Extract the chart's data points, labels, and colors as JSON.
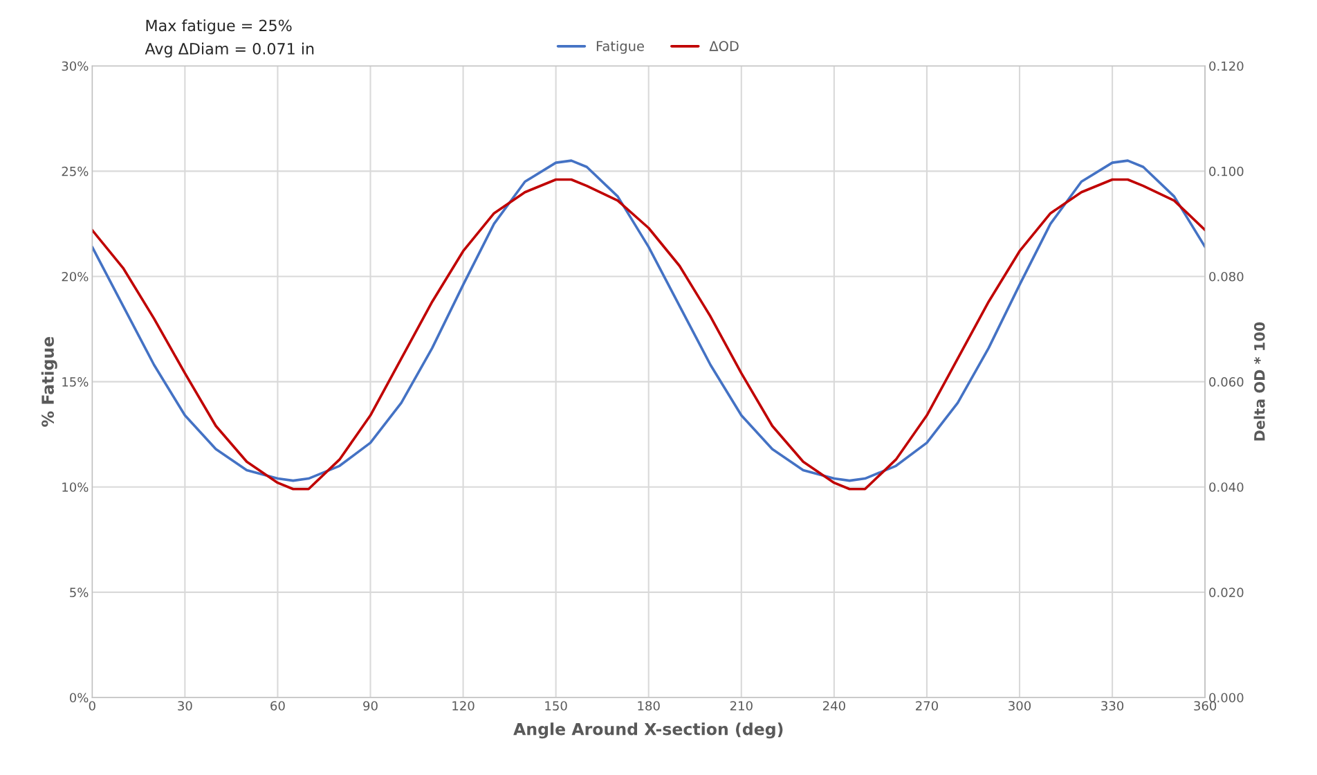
{
  "chart_data": {
    "type": "line",
    "xlabel": "Angle Around X-section (deg)",
    "ylabel": "% Fatigue",
    "y2label": "Delta OD * 100",
    "annotations": [
      "Max fatigue = 25%",
      "Avg ΔDiam = 0.071 in"
    ],
    "xlim": [
      0,
      360
    ],
    "xticks": [
      0,
      30,
      60,
      90,
      120,
      150,
      180,
      210,
      240,
      270,
      300,
      330,
      360
    ],
    "ylim": [
      0,
      30
    ],
    "yticks": [
      {
        "value": 0,
        "label": "0%"
      },
      {
        "value": 5,
        "label": "5%"
      },
      {
        "value": 10,
        "label": "10%"
      },
      {
        "value": 15,
        "label": "15%"
      },
      {
        "value": 20,
        "label": "20%"
      },
      {
        "value": 25,
        "label": "25%"
      },
      {
        "value": 30,
        "label": "30%"
      }
    ],
    "y2lim": [
      0,
      0.12
    ],
    "y2ticks": [
      {
        "value": 0,
        "label": "0.000"
      },
      {
        "value": 0.02,
        "label": "0.020"
      },
      {
        "value": 0.04,
        "label": "0.040"
      },
      {
        "value": 0.06,
        "label": "0.060"
      },
      {
        "value": 0.08,
        "label": "0.080"
      },
      {
        "value": 0.1,
        "label": "0.100"
      },
      {
        "value": 0.12,
        "label": "0.120"
      }
    ],
    "x": [
      0,
      10,
      20,
      30,
      40,
      50,
      60,
      65,
      70,
      80,
      90,
      100,
      110,
      120,
      130,
      140,
      150,
      155,
      160,
      170,
      180,
      190,
      200,
      210,
      220,
      230,
      240,
      245,
      250,
      260,
      270,
      280,
      290,
      300,
      310,
      320,
      330,
      335,
      340,
      350,
      360
    ],
    "series": [
      {
        "name": "Fatigue",
        "color": "#4472c4",
        "values": [
          21.4,
          18.6,
          15.8,
          13.4,
          11.8,
          10.8,
          10.4,
          10.3,
          10.4,
          11.0,
          12.1,
          14.0,
          16.6,
          19.6,
          22.5,
          24.5,
          25.4,
          25.5,
          25.2,
          23.8,
          21.4,
          18.6,
          15.8,
          13.4,
          11.8,
          10.8,
          10.4,
          10.3,
          10.4,
          11.0,
          12.1,
          14.0,
          16.6,
          19.6,
          22.5,
          24.5,
          25.4,
          25.5,
          25.2,
          23.8,
          21.4
        ]
      },
      {
        "name": "ΔOD",
        "color": "#c00000",
        "axis": "y2",
        "values": [
          0.0888,
          0.0816,
          0.072,
          0.0616,
          0.0516,
          0.0448,
          0.0408,
          0.0396,
          0.0396,
          0.0452,
          0.0536,
          0.0644,
          0.0752,
          0.0848,
          0.092,
          0.096,
          0.0984,
          0.0984,
          0.0972,
          0.0944,
          0.0892,
          0.082,
          0.0724,
          0.0616,
          0.0516,
          0.0448,
          0.0408,
          0.0396,
          0.0396,
          0.0452,
          0.0536,
          0.0644,
          0.0752,
          0.0848,
          0.092,
          0.096,
          0.0984,
          0.0984,
          0.0972,
          0.0944,
          0.0888
        ]
      }
    ],
    "grid": true,
    "legend": "top",
    "marker": "none",
    "line_style": "solid"
  }
}
